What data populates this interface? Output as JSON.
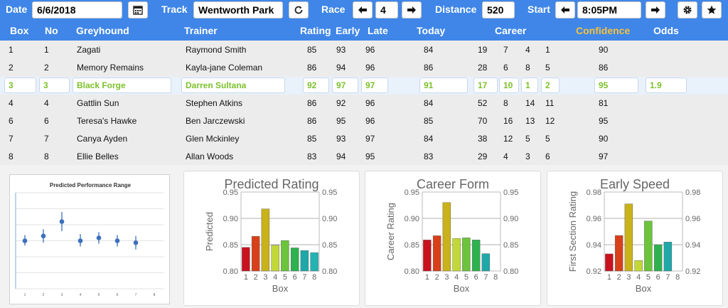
{
  "toolbar": {
    "date_label": "Date",
    "date_value": "6/6/2018",
    "track_label": "Track",
    "track_value": "Wentworth Park",
    "race_label": "Race",
    "race_value": "4",
    "distance_label": "Distance",
    "distance_value": "520",
    "start_label": "Start",
    "start_value": "8:05PM"
  },
  "table": {
    "headers": {
      "box": "Box",
      "no": "No",
      "greyhound": "Greyhound",
      "trainer": "Trainer",
      "rating": "Rating",
      "early": "Early",
      "late": "Late",
      "today": "Today",
      "career": "Career",
      "confidence": "Confidence",
      "odds": "Odds"
    },
    "rows": [
      {
        "box": "1",
        "no": "1",
        "name": "Zagati",
        "trainer": "Raymond Smith",
        "rating": "85",
        "early": "93",
        "late": "96",
        "today": "84",
        "c1": "19",
        "c2": "7",
        "c3": "4",
        "c4": "1",
        "confidence": "90",
        "odds": ""
      },
      {
        "box": "2",
        "no": "2",
        "name": "Memory Remains",
        "trainer": "Kayla-jane Coleman",
        "rating": "86",
        "early": "94",
        "late": "96",
        "today": "86",
        "c1": "28",
        "c2": "6",
        "c3": "8",
        "c4": "5",
        "confidence": "86",
        "odds": ""
      },
      {
        "box": "3",
        "no": "3",
        "name": "Black Forge",
        "trainer": "Darren Sultana",
        "rating": "92",
        "early": "97",
        "late": "97",
        "today": "91",
        "c1": "17",
        "c2": "10",
        "c3": "1",
        "c4": "2",
        "confidence": "95",
        "odds": "1.9"
      },
      {
        "box": "4",
        "no": "4",
        "name": "Gattlin Sun",
        "trainer": "Stephen Atkins",
        "rating": "86",
        "early": "92",
        "late": "96",
        "today": "84",
        "c1": "52",
        "c2": "8",
        "c3": "14",
        "c4": "11",
        "confidence": "81",
        "odds": ""
      },
      {
        "box": "6",
        "no": "6",
        "name": "Teresa's Hawke",
        "trainer": "Ben Jarczewski",
        "rating": "86",
        "early": "95",
        "late": "96",
        "today": "85",
        "c1": "70",
        "c2": "16",
        "c3": "13",
        "c4": "12",
        "confidence": "95",
        "odds": ""
      },
      {
        "box": "7",
        "no": "7",
        "name": "Canya Ayden",
        "trainer": "Glen Mckinley",
        "rating": "85",
        "early": "93",
        "late": "97",
        "today": "84",
        "c1": "38",
        "c2": "12",
        "c3": "5",
        "c4": "5",
        "confidence": "90",
        "odds": ""
      },
      {
        "box": "8",
        "no": "8",
        "name": "Ellie Belles",
        "trainer": "Allan Woods",
        "rating": "83",
        "early": "94",
        "late": "95",
        "today": "83",
        "c1": "29",
        "c2": "4",
        "c3": "3",
        "c4": "6",
        "confidence": "97",
        "odds": ""
      }
    ]
  },
  "colors": {
    "header_blue": "#3f86e8",
    "confidence_header": "#f6c13b",
    "selected_text": "#7cc12a",
    "bars": [
      "#c9121e",
      "#d8401a",
      "#c9b21a",
      "#c2d838",
      "#6cc33c",
      "#2eb14f",
      "#1fa8a8",
      "#23b3b3"
    ]
  },
  "chart_data": [
    {
      "type": "scatter",
      "title": "Predicted Performance Range",
      "x": [
        1,
        2,
        3,
        4,
        5,
        6,
        7,
        8
      ],
      "series": [
        {
          "values": [
            0.5,
            0.55,
            0.7,
            0.5,
            0.53,
            0.5,
            0.48,
            null
          ],
          "low": [
            0.45,
            0.48,
            0.6,
            0.44,
            0.47,
            0.44,
            0.41,
            null
          ],
          "high": [
            0.56,
            0.62,
            0.8,
            0.57,
            0.59,
            0.56,
            0.55,
            null
          ]
        }
      ],
      "xlim": [
        0.5,
        8.5
      ],
      "ylim": [
        0,
        1
      ]
    },
    {
      "type": "bar",
      "title": "Predicted Rating",
      "categories": [
        "1",
        "2",
        "3",
        "4",
        "5",
        "6",
        "7",
        "8"
      ],
      "values": [
        0.845,
        0.866,
        0.918,
        0.849,
        0.858,
        0.844,
        0.839,
        0.835
      ],
      "xlabel": "Box",
      "ylabel": "Predicted",
      "ylim": [
        0.8,
        0.95
      ],
      "yticks": [
        "0.80",
        "0.85",
        "0.90",
        "0.95"
      ]
    },
    {
      "type": "bar",
      "title": "Career Form",
      "categories": [
        "1",
        "2",
        "3",
        "4",
        "5",
        "6",
        "7",
        "8"
      ],
      "values": [
        0.859,
        0.867,
        0.93,
        0.862,
        0.863,
        0.859,
        0.833,
        null
      ],
      "xlabel": "Box",
      "ylabel": "Career Rating",
      "ylim": [
        0.8,
        0.95
      ],
      "yticks": [
        "0.80",
        "0.85",
        "0.90",
        "0.95"
      ]
    },
    {
      "type": "bar",
      "title": "Early Speed",
      "categories": [
        "1",
        "2",
        "3",
        "4",
        "5",
        "6",
        "7",
        "8"
      ],
      "values": [
        0.933,
        0.947,
        0.971,
        0.928,
        0.958,
        0.94,
        0.942,
        null
      ],
      "xlabel": "Box",
      "ylabel": "First Section Rating",
      "ylim": [
        0.92,
        0.98
      ],
      "yticks": [
        "0.92",
        "0.94",
        "0.96",
        "0.98"
      ]
    }
  ]
}
